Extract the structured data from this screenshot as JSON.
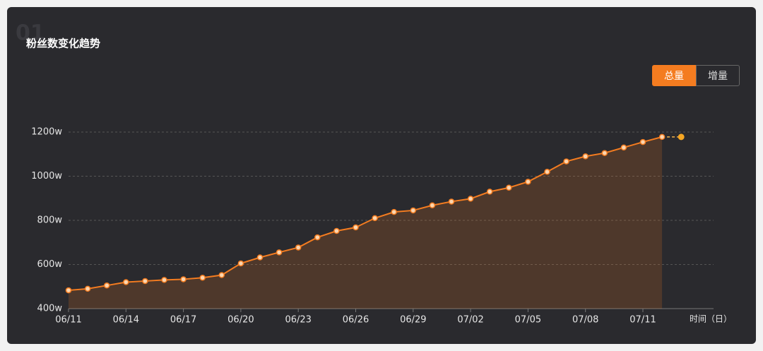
{
  "header": {
    "index": "01",
    "title": "粉丝数变化趋势"
  },
  "toggle": {
    "buttons": [
      "总量",
      "增量"
    ]
  },
  "chart_data": {
    "type": "line",
    "x_label": "时间（日）",
    "categories": [
      "06/11",
      null,
      null,
      "06/14",
      null,
      null,
      "06/17",
      null,
      null,
      "06/20",
      null,
      null,
      "06/23",
      null,
      null,
      "06/26",
      null,
      null,
      "06/29",
      null,
      null,
      "07/02",
      null,
      null,
      "07/05",
      null,
      null,
      "07/08",
      null,
      null,
      "07/11",
      null,
      null
    ],
    "values": [
      483,
      490,
      505,
      520,
      525,
      530,
      533,
      540,
      552,
      605,
      632,
      655,
      677,
      723,
      752,
      768,
      810,
      838,
      845,
      868,
      885,
      898,
      930,
      948,
      975,
      1020,
      1067,
      1090,
      1105,
      1130,
      1155,
      1178,
      1178
    ],
    "color": "#f47c20",
    "ylim": [
      400,
      1200
    ],
    "yticks": [
      {
        "value": 400,
        "label": "400w"
      },
      {
        "value": 600,
        "label": "600w"
      },
      {
        "value": 800,
        "label": "800w"
      },
      {
        "value": 1000,
        "label": "1000w"
      },
      {
        "value": 1200,
        "label": "1200w"
      }
    ],
    "grid": true
  }
}
